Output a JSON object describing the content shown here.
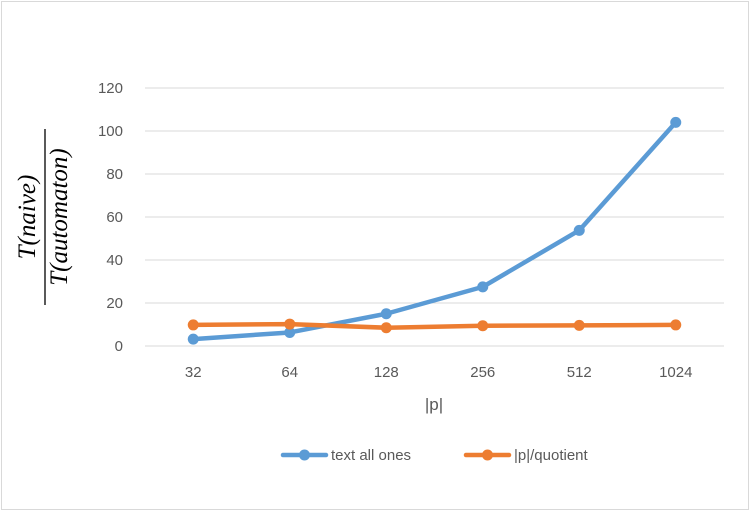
{
  "chart_data": {
    "type": "line",
    "title": "",
    "xlabel": "|p|",
    "ylabel": {
      "numerator": "T(naive)",
      "denominator": "T(automaton)"
    },
    "categories": [
      "32",
      "64",
      "128",
      "256",
      "512",
      "1024"
    ],
    "ylim": [
      0,
      120
    ],
    "yticks": [
      0,
      20,
      40,
      60,
      80,
      100,
      120
    ],
    "grid": true,
    "legend_position": "bottom",
    "series": [
      {
        "name": "text all ones",
        "color": "#5b9bd5",
        "values": [
          3.2,
          6.3,
          15.0,
          27.5,
          53.8,
          104.0
        ]
      },
      {
        "name": "|p|/quotient",
        "color": "#ed7d31",
        "values": [
          9.8,
          10.2,
          8.5,
          9.4,
          9.6,
          9.8
        ]
      }
    ]
  }
}
